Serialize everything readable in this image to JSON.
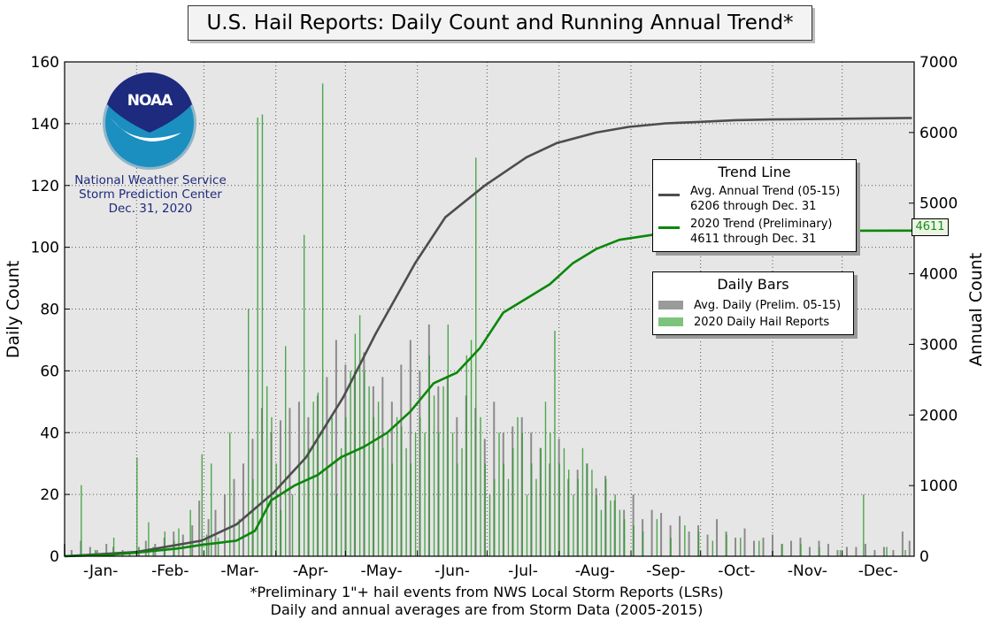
{
  "title": "U.S. Hail Reports: Daily Count and Running Annual Trend*",
  "logo": {
    "text": "NOAA",
    "icon": "noaa-logo-icon"
  },
  "credit": {
    "line1": "National Weather Service",
    "line2": "Storm Prediction Center",
    "line3": "Dec. 31, 2020"
  },
  "footnote": {
    "line1": "*Preliminary 1\"+ hail events from NWS Local Storm Reports (LSRs)",
    "line2": "Daily and annual averages are from Storm Data (2005-2015)"
  },
  "legend_trend": {
    "title": "Trend Line",
    "avg_line1": "Avg. Annual Trend (05-15)",
    "avg_line2": "6206 through Dec. 31",
    "cur_line1": "2020 Trend (Preliminary)",
    "cur_line2": "4611 through Dec. 31"
  },
  "legend_bars": {
    "title": "Daily Bars",
    "avg_label": "Avg. Daily (Prelim. 05-15)",
    "cur_label": "2020 Daily Hail Reports"
  },
  "end_value_label": "4611",
  "colors": {
    "plot_bg": "#e6e6e6",
    "avg_bar": "#8a8a8a",
    "cur_bar": "#2e9a2e",
    "avg_line": "#4d4d4d",
    "cur_line": "#0a870a",
    "credit_text": "#1f2a7a"
  },
  "chart_data": {
    "type": "bar+line",
    "title": "U.S. Hail Reports: Daily Count and Running Annual Trend*",
    "ylabel": "Daily Count",
    "y2label": "Annual Count",
    "ylim": [
      0,
      160
    ],
    "y2lim": [
      0,
      7000
    ],
    "yticks": [
      0,
      20,
      40,
      60,
      80,
      100,
      120,
      140,
      160
    ],
    "y2ticks": [
      0,
      1000,
      2000,
      3000,
      4000,
      5000,
      6000,
      7000
    ],
    "xlim_day": [
      1,
      366
    ],
    "month_labels": [
      "-Jan-",
      "-Feb-",
      "-Mar-",
      "-Apr-",
      "-May-",
      "-Jun-",
      "-Jul-",
      "-Aug-",
      "-Sep-",
      "-Oct-",
      "-Nov-",
      "-Dec-"
    ],
    "month_start_day": [
      1,
      32,
      61,
      92,
      122,
      153,
      183,
      214,
      245,
      275,
      306,
      336
    ],
    "grid": true,
    "series": [
      {
        "name": "Avg. Annual Trend (05-15)",
        "kind": "line",
        "axis": "right",
        "x": [
          1,
          32,
          60,
          75,
          91,
          105,
          121,
          135,
          152,
          165,
          182,
          200,
          213,
          230,
          244,
          260,
          274,
          290,
          305,
          335,
          366
        ],
        "y": [
          0,
          60,
          220,
          450,
          900,
          1400,
          2250,
          3150,
          4150,
          4800,
          5250,
          5650,
          5850,
          6000,
          6080,
          6130,
          6150,
          6175,
          6185,
          6195,
          6206
        ]
      },
      {
        "name": "2020 Trend (Preliminary)",
        "kind": "line",
        "axis": "right",
        "x": [
          1,
          20,
          32,
          50,
          60,
          75,
          83,
          90,
          100,
          110,
          120,
          130,
          140,
          150,
          160,
          170,
          180,
          190,
          200,
          210,
          220,
          230,
          240,
          260,
          280,
          300,
          330,
          366
        ],
        "y": [
          0,
          20,
          50,
          110,
          160,
          220,
          360,
          790,
          1000,
          1150,
          1400,
          1550,
          1750,
          2050,
          2450,
          2600,
          2950,
          3450,
          3650,
          3850,
          4150,
          4350,
          4480,
          4580,
          4600,
          4605,
          4610,
          4611
        ]
      },
      {
        "name": "Avg. Daily (Prelim. 05-15)",
        "kind": "bar",
        "axis": "left",
        "x_day": [
          1,
          4,
          8,
          12,
          15,
          19,
          22,
          26,
          29,
          33,
          36,
          40,
          44,
          48,
          52,
          56,
          59,
          63,
          66,
          70,
          74,
          78,
          82,
          86,
          90,
          94,
          98,
          102,
          106,
          110,
          114,
          118,
          122,
          126,
          130,
          134,
          138,
          142,
          146,
          150,
          154,
          158,
          162,
          166,
          170,
          174,
          178,
          182,
          186,
          190,
          194,
          198,
          202,
          206,
          210,
          214,
          218,
          222,
          226,
          230,
          234,
          238,
          242,
          246,
          250,
          254,
          258,
          262,
          266,
          270,
          274,
          278,
          282,
          286,
          290,
          294,
          298,
          302,
          306,
          310,
          314,
          318,
          322,
          326,
          330,
          334,
          338,
          342,
          346,
          350,
          354,
          358,
          362,
          365
        ],
        "values": [
          4,
          2,
          5,
          3,
          2,
          4,
          3,
          2,
          1,
          3,
          5,
          4,
          6,
          8,
          7,
          10,
          18,
          12,
          15,
          20,
          25,
          30,
          38,
          48,
          40,
          44,
          48,
          50,
          45,
          52,
          58,
          70,
          62,
          60,
          66,
          55,
          58,
          50,
          62,
          70,
          60,
          75,
          55,
          58,
          45,
          52,
          48,
          38,
          50,
          40,
          42,
          45,
          40,
          35,
          30,
          38,
          25,
          28,
          30,
          22,
          26,
          18,
          15,
          20,
          12,
          15,
          14,
          10,
          13,
          8,
          10,
          7,
          12,
          8,
          6,
          9,
          5,
          6,
          7,
          4,
          5,
          6,
          3,
          5,
          4,
          2,
          3,
          3,
          4,
          2,
          3,
          2,
          8,
          5
        ]
      },
      {
        "name": "2020 Daily Hail Reports",
        "kind": "bar",
        "axis": "left",
        "x_day": [
          8,
          14,
          22,
          32,
          37,
          39,
          44,
          48,
          50,
          55,
          60,
          62,
          64,
          67,
          72,
          76,
          80,
          82,
          84,
          86,
          88,
          90,
          92,
          94,
          96,
          99,
          102,
          104,
          106,
          108,
          110,
          112,
          114,
          116,
          118,
          120,
          122,
          124,
          126,
          128,
          130,
          132,
          134,
          136,
          138,
          140,
          142,
          144,
          146,
          148,
          150,
          152,
          154,
          156,
          158,
          160,
          162,
          164,
          166,
          168,
          170,
          172,
          174,
          176,
          178,
          180,
          182,
          184,
          186,
          188,
          190,
          192,
          194,
          196,
          198,
          200,
          202,
          204,
          206,
          208,
          210,
          212,
          214,
          216,
          218,
          220,
          222,
          224,
          226,
          228,
          230,
          232,
          234,
          236,
          238,
          240,
          242,
          246,
          250,
          256,
          262,
          268,
          274,
          280,
          286,
          292,
          300,
          310,
          318,
          326,
          335,
          345,
          355,
          363
        ],
        "values": [
          23,
          2,
          6,
          32,
          11,
          3,
          8,
          5,
          9,
          15,
          33,
          7,
          30,
          6,
          40,
          12,
          80,
          25,
          142,
          143,
          55,
          45,
          30,
          15,
          68,
          20,
          30,
          104,
          35,
          50,
          53,
          153,
          28,
          45,
          20,
          35,
          45,
          60,
          72,
          78,
          60,
          55,
          45,
          50,
          35,
          40,
          30,
          45,
          42,
          35,
          30,
          40,
          45,
          40,
          65,
          52,
          40,
          55,
          75,
          40,
          30,
          35,
          65,
          70,
          129,
          45,
          30,
          20,
          25,
          40,
          30,
          25,
          35,
          45,
          40,
          20,
          30,
          25,
          35,
          50,
          40,
          73,
          30,
          35,
          28,
          20,
          25,
          35,
          30,
          28,
          20,
          15,
          25,
          18,
          20,
          15,
          12,
          10,
          8,
          12,
          6,
          10,
          8,
          5,
          7,
          6,
          5,
          4,
          4,
          3,
          2,
          20,
          3,
          2
        ]
      }
    ]
  }
}
